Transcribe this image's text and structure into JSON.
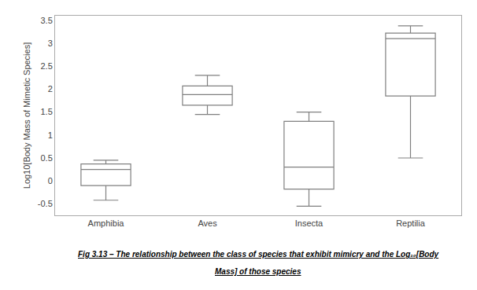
{
  "chart_data": {
    "type": "box",
    "categories": [
      "Amphibia",
      "Aves",
      "Insecta",
      "Reptilia"
    ],
    "q1": [
      -0.1,
      1.65,
      -0.18,
      1.85
    ],
    "median": [
      0.25,
      1.88,
      0.3,
      3.1
    ],
    "q3": [
      0.37,
      2.07,
      1.3,
      3.22
    ],
    "whislo": [
      -0.42,
      1.45,
      -0.55,
      0.5
    ],
    "whishi": [
      0.45,
      2.3,
      1.5,
      3.38
    ],
    "ylabel": "Log10[Body Mass of Mimetic Species]",
    "ylim": [
      -0.75,
      3.6
    ],
    "yticks": [
      -0.5,
      0,
      0.5,
      1,
      1.5,
      2,
      2.5,
      3,
      3.5
    ],
    "color": "gray",
    "grid": false,
    "annotations": [
      "Fig 3.13 – The relationship between the class of species that exhibit mimicry and the Log₁₀[Body",
      "Mass] of those species"
    ]
  }
}
